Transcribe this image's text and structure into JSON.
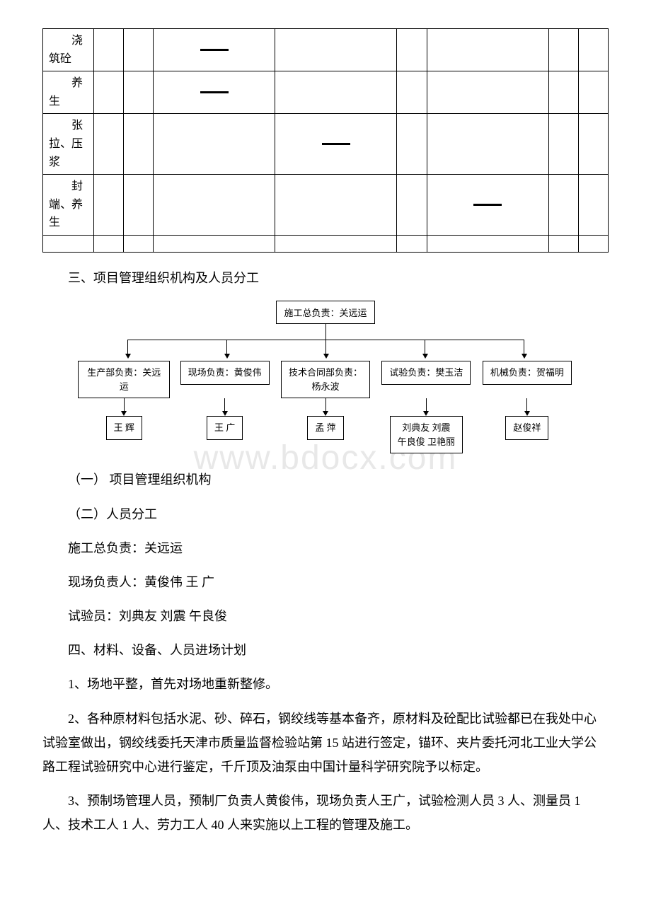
{
  "gantt": {
    "rows": [
      {
        "label_first": "浇",
        "label_rest": "筑砼",
        "bar_col": 2
      },
      {
        "label_first": "养",
        "label_rest": "生",
        "bar_col": 2
      },
      {
        "label_first": "张",
        "label_rest": "拉、压浆",
        "bar_col": 3
      },
      {
        "label_first": "封",
        "label_rest": "端、养生",
        "bar_col": 5
      }
    ],
    "num_data_cols": 8
  },
  "section3_heading": "三、项目管理组织机构及人员分工",
  "orgchart": {
    "top": "施工总负责：关远运",
    "level2": [
      "生产部负责：关远运",
      "现场负责：黄俊伟",
      "技术合同部负责：杨永波",
      "试验负责：樊玉洁",
      "机械负责：贺福明"
    ],
    "level3": [
      "王  辉",
      "王  广",
      "孟 萍",
      "刘典友   刘震\n午良俊   卫艳丽",
      "赵俊祥"
    ]
  },
  "paragraphs": {
    "p1": "（一） 项目管理组织机构",
    "p2": "（二）人员分工",
    "p3": "施工总负责：关远运",
    "p4": "现场负责人：黄俊伟 王 广",
    "p5": "试验员：刘典友 刘震 午良俊",
    "section4_heading": "四、材料、设备、人员进场计划",
    "p6": "1、场地平整，首先对场地重新整修。",
    "p7": "2、各种原材料包括水泥、砂、碎石，钢绞线等基本备齐，原材料及砼配比试验都已在我处中心试验室做出，钢绞线委托天津市质量监督检验站第 15 站进行签定，锚环、夹片委托河北工业大学公路工程试验研究中心进行鉴定，千斤顶及油泵由中国计量科学研究院予以标定。",
    "p8": "3、预制场管理人员，预制厂负责人黄俊伟，现场负责人王广，试验检测人员 3 人、测量员 1 人、技术工人 1 人、劳力工人 40 人来实施以上工程的管理及施工。"
  },
  "watermark_text": "www.bdocx.com",
  "colors": {
    "text": "#000000",
    "border": "#000000",
    "bg": "#ffffff",
    "watermark": "#e8e8e8"
  }
}
